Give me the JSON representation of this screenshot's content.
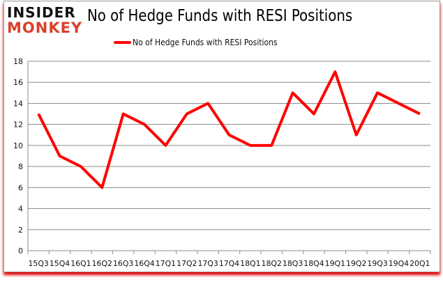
{
  "logo": {
    "top": "INSIDER",
    "bottom": "MONKEY"
  },
  "chart_data": {
    "type": "line",
    "title": "No of Hedge Funds with RESI Positions",
    "xlabel": "",
    "ylabel": "",
    "categories": [
      "15Q3",
      "15Q4",
      "16Q1",
      "16Q2",
      "16Q3",
      "16Q4",
      "17Q1",
      "17Q2",
      "17Q3",
      "17Q4",
      "18Q1",
      "18Q2",
      "18Q3",
      "18Q4",
      "19Q1",
      "19Q2",
      "19Q3",
      "19Q4",
      "20Q1"
    ],
    "series": [
      {
        "name": "No of Hedge Funds with RESI Positions",
        "color": "#ff0000",
        "values": [
          13,
          9,
          8,
          6,
          13,
          12,
          10,
          13,
          14,
          11,
          10,
          10,
          15,
          13,
          17,
          11,
          15,
          14,
          13
        ]
      }
    ],
    "ylim": [
      0,
      18
    ],
    "yticks": [
      0,
      2,
      4,
      6,
      8,
      10,
      12,
      14,
      16,
      18
    ],
    "grid": true,
    "legend_position": "top-center"
  }
}
